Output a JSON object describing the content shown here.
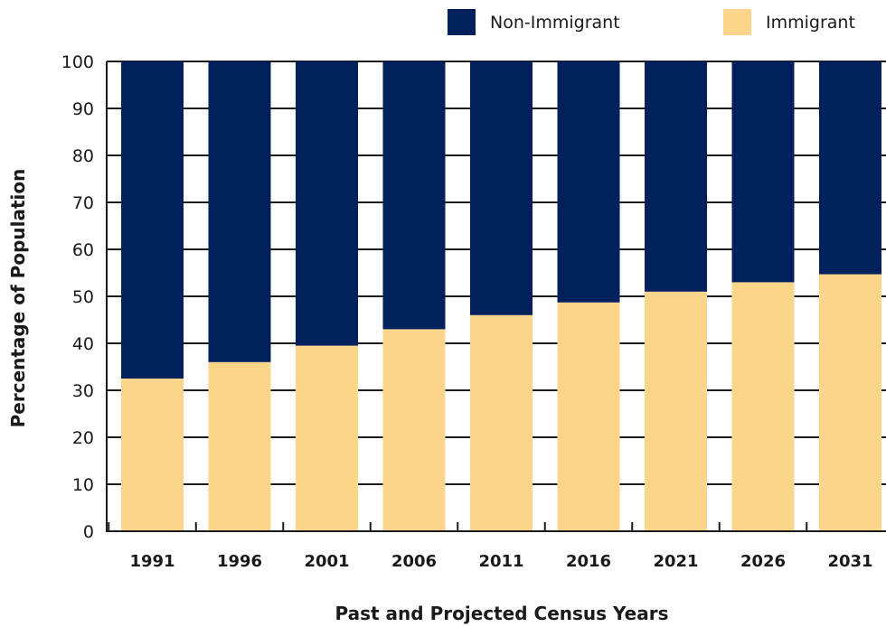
{
  "chart_data": {
    "type": "bar",
    "stacked": true,
    "title": "",
    "xlabel": "Past and Projected Census Years",
    "ylabel": "Percentage of Population",
    "ylim": [
      0,
      100
    ],
    "yticks": [
      "0",
      "10",
      "20",
      "30",
      "40",
      "50",
      "60",
      "70",
      "80",
      "90",
      "100"
    ],
    "grid": true,
    "legend_position": "top-right",
    "categories": [
      "1991",
      "1996",
      "2001",
      "2006",
      "2011",
      "2016",
      "2021",
      "2026",
      "2031"
    ],
    "series": [
      {
        "name": "Immigrant",
        "color": "#fbd589",
        "values": [
          32.5,
          36,
          39.5,
          43,
          46,
          48.7,
          51,
          53,
          54.7
        ]
      },
      {
        "name": "Non-Immigrant",
        "color": "#02205c",
        "values": [
          67.5,
          64,
          60.5,
          57,
          54,
          51.3,
          49,
          47,
          45.3
        ]
      }
    ],
    "legend_order": [
      "Non-Immigrant",
      "Immigrant"
    ]
  }
}
